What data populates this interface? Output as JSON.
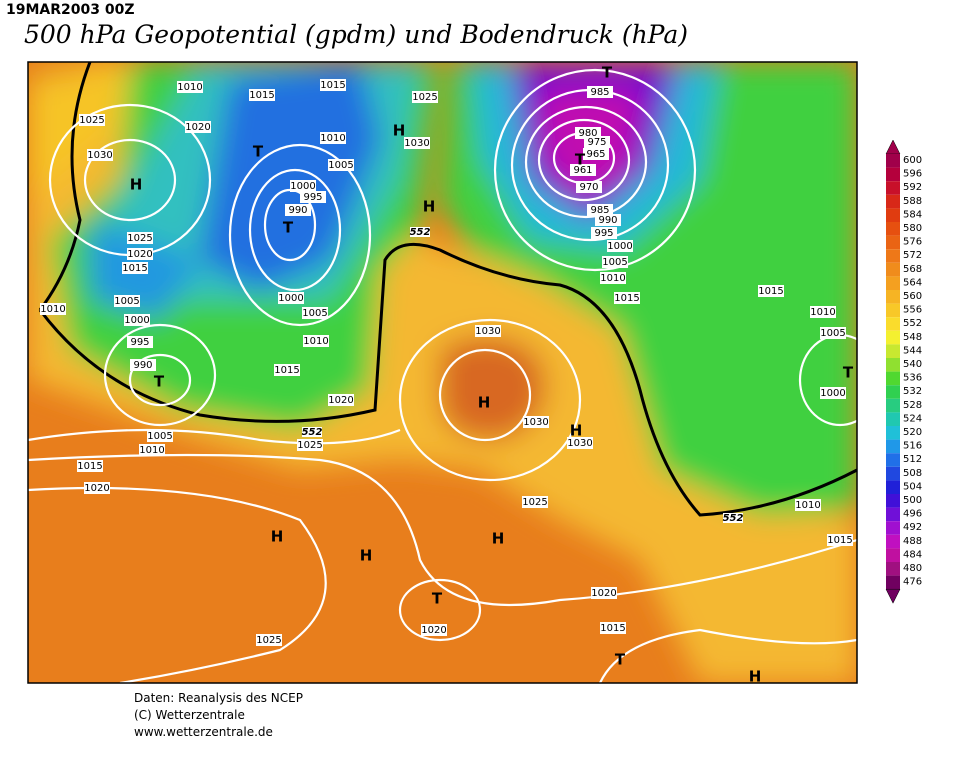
{
  "header": {
    "date": "19MAR2003 00Z",
    "title": "500 hPa Geopotential (gpdm) und Bodendruck (hPa)"
  },
  "map": {
    "isobar_labels": [
      "1010",
      "1015",
      "1015",
      "1025",
      "1025",
      "1020",
      "1030",
      "1010",
      "1030",
      "1005",
      "1000",
      "995",
      "990",
      "985",
      "980",
      "975",
      "965",
      "961",
      "970",
      "985",
      "990",
      "995",
      "1000",
      "1005",
      "1010",
      "1015",
      "1025",
      "1020",
      "1015",
      "1005",
      "1010",
      "1000",
      "995",
      "990",
      "1000",
      "1005",
      "1010",
      "1015",
      "1020",
      "1030",
      "1030",
      "1030",
      "1005",
      "1010",
      "1025",
      "1015",
      "1020",
      "1025",
      "1020",
      "1020",
      "1015",
      "1025",
      "1015",
      "1010",
      "1005",
      "1000",
      "1010",
      "1015"
    ],
    "contour_labels": [
      "552",
      "552",
      "552"
    ],
    "markers": [
      "H",
      "T",
      "H",
      "H",
      "T",
      "T",
      "T",
      "T",
      "H",
      "H",
      "H",
      "H",
      "H",
      "T",
      "T",
      "H",
      "T"
    ]
  },
  "colorbar": {
    "ticks": [
      600,
      596,
      592,
      588,
      584,
      580,
      576,
      572,
      568,
      564,
      560,
      556,
      552,
      548,
      544,
      540,
      536,
      532,
      528,
      524,
      520,
      516,
      512,
      508,
      504,
      500,
      496,
      492,
      488,
      484,
      480,
      476
    ],
    "colors": [
      "#a0004a",
      "#b4003c",
      "#c8102a",
      "#d82818",
      "#e03c10",
      "#e65010",
      "#ea6414",
      "#ee7818",
      "#f08c1c",
      "#f4a020",
      "#f6b424",
      "#f8c828",
      "#fadc2c",
      "#f4f030",
      "#c8e830",
      "#90e030",
      "#50d830",
      "#30d050",
      "#28cc80",
      "#20c8b0",
      "#20c0d8",
      "#2098e8",
      "#2070e8",
      "#2048e0",
      "#2020d8",
      "#4010d8",
      "#7010d8",
      "#a010d0",
      "#c010c0",
      "#c010a0",
      "#a01080",
      "#700060"
    ]
  },
  "footer": {
    "source": "Daten: Reanalysis des NCEP",
    "copyright": "(C) Wetterzentrale",
    "url": "www.wetterzentrale.de"
  }
}
